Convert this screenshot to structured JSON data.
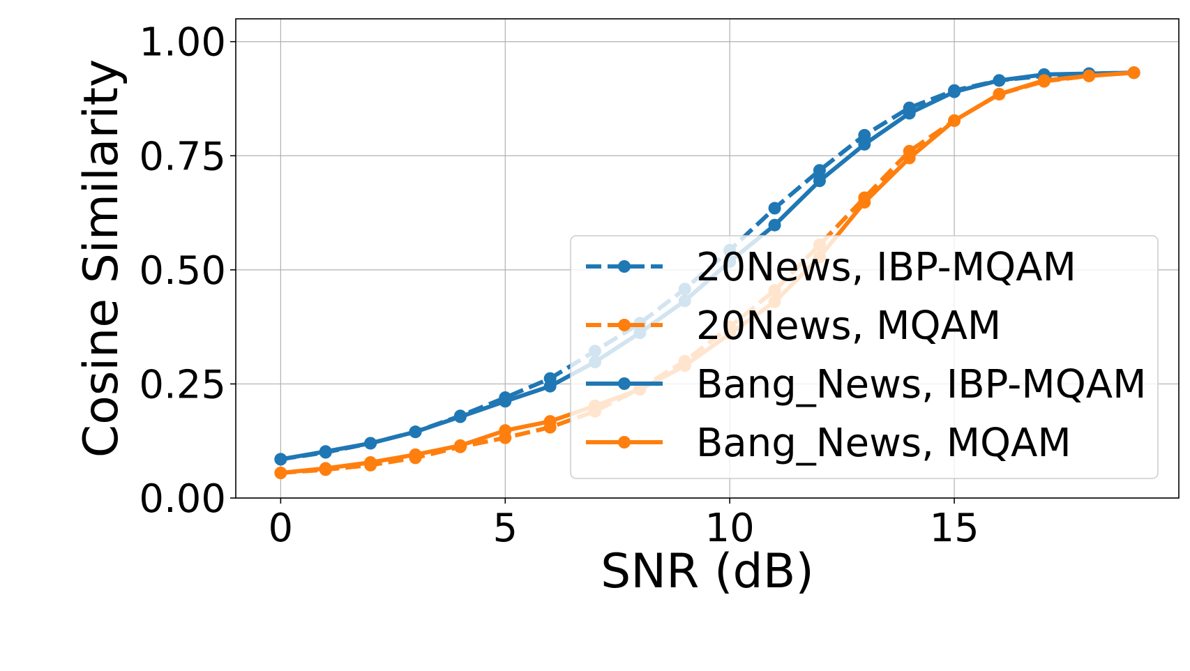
{
  "chart_data": {
    "type": "line",
    "title": "",
    "xlabel": "SNR (dB)",
    "ylabel": "Cosine Similarity",
    "xlim": [
      -1,
      20
    ],
    "ylim": [
      0,
      1.05
    ],
    "xticks": [
      0,
      5,
      10,
      15
    ],
    "xtick_labels": [
      "0",
      "5",
      "10",
      "15"
    ],
    "yticks": [
      0,
      0.25,
      0.5,
      0.75,
      1.0
    ],
    "ytick_labels": [
      "0.00",
      "0.25",
      "0.50",
      "0.75",
      "1.00"
    ],
    "grid": true,
    "legend_position": "center-right",
    "x": [
      0,
      1,
      2,
      3,
      4,
      5,
      6,
      7,
      8,
      9,
      10,
      11,
      12,
      13,
      14,
      15,
      16,
      17,
      18,
      19
    ],
    "series": [
      {
        "name": "20News, IBP-MQAM",
        "color": "#1f77b4",
        "style": "dashed",
        "values": [
          0.085,
          0.1,
          0.12,
          0.145,
          0.18,
          0.22,
          0.262,
          0.322,
          0.383,
          0.458,
          0.543,
          0.635,
          0.718,
          0.795,
          0.855,
          0.893,
          0.915,
          0.925,
          0.93,
          0.932
        ]
      },
      {
        "name": "20News, MQAM",
        "color": "#ff7f0e",
        "style": "dashed",
        "values": [
          0.055,
          0.062,
          0.072,
          0.088,
          0.112,
          0.132,
          0.155,
          0.19,
          0.24,
          0.3,
          0.375,
          0.455,
          0.555,
          0.658,
          0.76,
          0.827,
          0.885,
          0.913,
          0.925,
          0.932
        ]
      },
      {
        "name": "Bang_News, IBP-MQAM",
        "color": "#1f77b4",
        "style": "solid",
        "values": [
          0.085,
          0.102,
          0.12,
          0.145,
          0.178,
          0.212,
          0.245,
          0.298,
          0.362,
          0.432,
          0.518,
          0.598,
          0.695,
          0.775,
          0.843,
          0.89,
          0.915,
          0.928,
          0.93,
          0.932
        ]
      },
      {
        "name": "Bang_News, MQAM",
        "color": "#ff7f0e",
        "style": "solid",
        "values": [
          0.055,
          0.065,
          0.078,
          0.095,
          0.115,
          0.148,
          0.168,
          0.202,
          0.238,
          0.29,
          0.36,
          0.43,
          0.528,
          0.648,
          0.745,
          0.827,
          0.885,
          0.915,
          0.925,
          0.932
        ]
      }
    ]
  }
}
